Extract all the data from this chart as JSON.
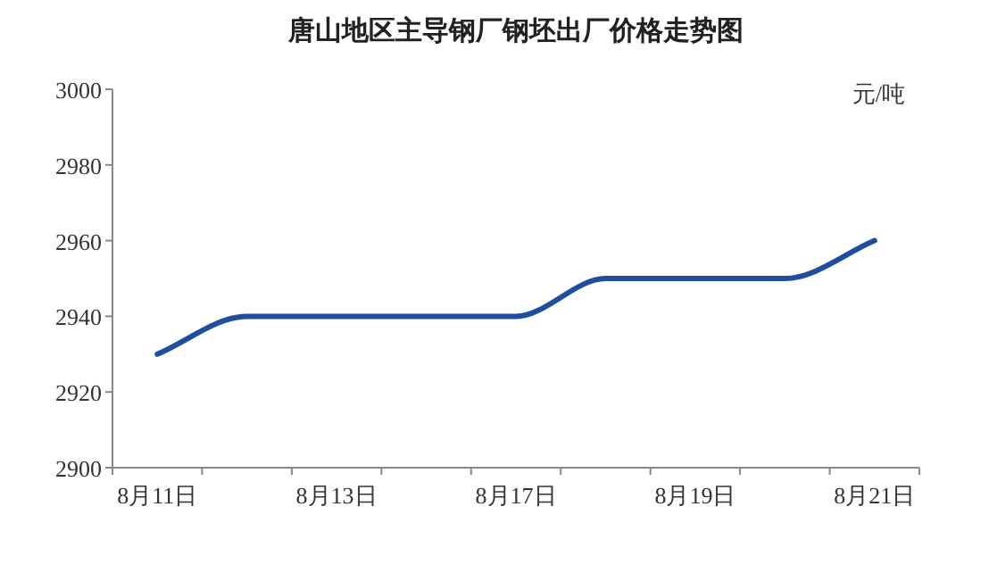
{
  "chart_data": {
    "type": "line",
    "title": "唐山地区主导钢厂钢坯出厂价格走势图",
    "ylabel": "元/吨",
    "categories": [
      "8月11日",
      null,
      "8月13日",
      null,
      "8月17日",
      null,
      "8月19日",
      null,
      "8月21日"
    ],
    "series": [
      {
        "color": "#1f4e9e",
        "values": [
          2930,
          2940,
          2940,
          2940,
          2940,
          2950,
          2950,
          2950,
          2960
        ]
      }
    ],
    "ylim": [
      2900,
      3000
    ],
    "yticks": [
      2900,
      2920,
      2940,
      2960,
      2980,
      3000
    ],
    "grid": false,
    "marker": "none",
    "line_style": "solid"
  }
}
